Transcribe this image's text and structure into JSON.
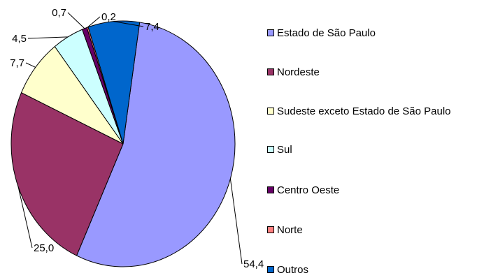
{
  "chart_data": {
    "type": "pie",
    "categories": [
      "Estado de São Paulo",
      "Nordeste",
      "Sudeste exceto Estado de São Paulo",
      "Sul",
      "Centro Oeste",
      "Norte",
      "Outros"
    ],
    "values": [
      54.4,
      25.0,
      7.7,
      4.5,
      0.7,
      0.2,
      7.4
    ],
    "value_labels": [
      "54,4",
      "25,0",
      "7,7",
      "4,5",
      "0,7",
      "0,2",
      "7,4"
    ],
    "colors": [
      "#9999ff",
      "#993366",
      "#ffffcc",
      "#ccffff",
      "#660066",
      "#ff8080",
      "#0066cc"
    ]
  }
}
